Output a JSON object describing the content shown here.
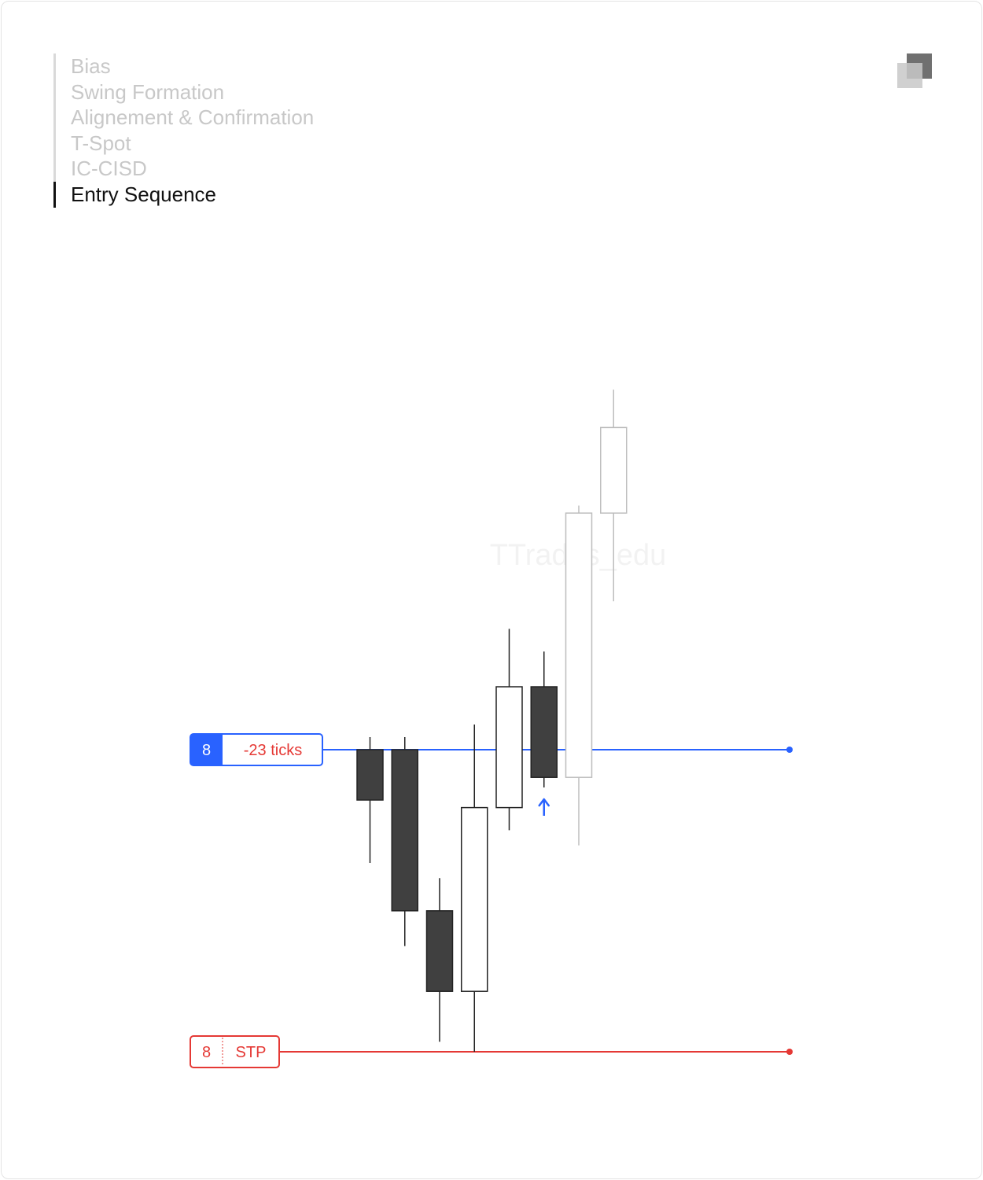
{
  "steps": [
    {
      "label": "Bias",
      "active": false
    },
    {
      "label": "Swing Formation",
      "active": false
    },
    {
      "label": "Alignement & Confirmation",
      "active": false
    },
    {
      "label": "T-Spot",
      "active": false
    },
    {
      "label": "IC-CISD",
      "active": false
    },
    {
      "label": "Entry Sequence",
      "active": true
    }
  ],
  "watermark": "TTrades_edu",
  "entry_order": {
    "qty": "8",
    "label": "-23 ticks",
    "color": "#2962ff"
  },
  "stop_order": {
    "qty": "8",
    "label": "STP",
    "color": "#e53935"
  },
  "colors": {
    "bull_body": "#ffffff",
    "bear_body": "#404040",
    "wick": "#222222",
    "faded": "#bdbdbd",
    "arrow": "#2962ff"
  },
  "chart_data": {
    "type": "candlestick",
    "title": "",
    "xlabel": "",
    "ylabel": "",
    "ylim": [
      0,
      210
    ],
    "candles": [
      {
        "o": 90,
        "h": 95,
        "l": 45,
        "c": 70,
        "faded": false
      },
      {
        "o": 90,
        "h": 95,
        "l": 12,
        "c": 26,
        "faded": false
      },
      {
        "o": 26,
        "h": 39,
        "l": -26,
        "c": -6,
        "faded": false
      },
      {
        "o": -6,
        "h": 100,
        "l": -30,
        "c": 67,
        "faded": false
      },
      {
        "o": 67,
        "h": 138,
        "l": 58,
        "c": 115,
        "faded": false
      },
      {
        "o": 115,
        "h": 129,
        "l": 75,
        "c": 79,
        "faded": false
      },
      {
        "o": 79,
        "h": 187,
        "l": 52,
        "c": 184,
        "faded": true
      },
      {
        "o": 184,
        "h": 233,
        "l": 149,
        "c": 218,
        "faded": true
      }
    ],
    "entry_level": 90,
    "stop_level": -30,
    "entry_arrow": {
      "candle_index": 5,
      "direction": "up"
    }
  }
}
